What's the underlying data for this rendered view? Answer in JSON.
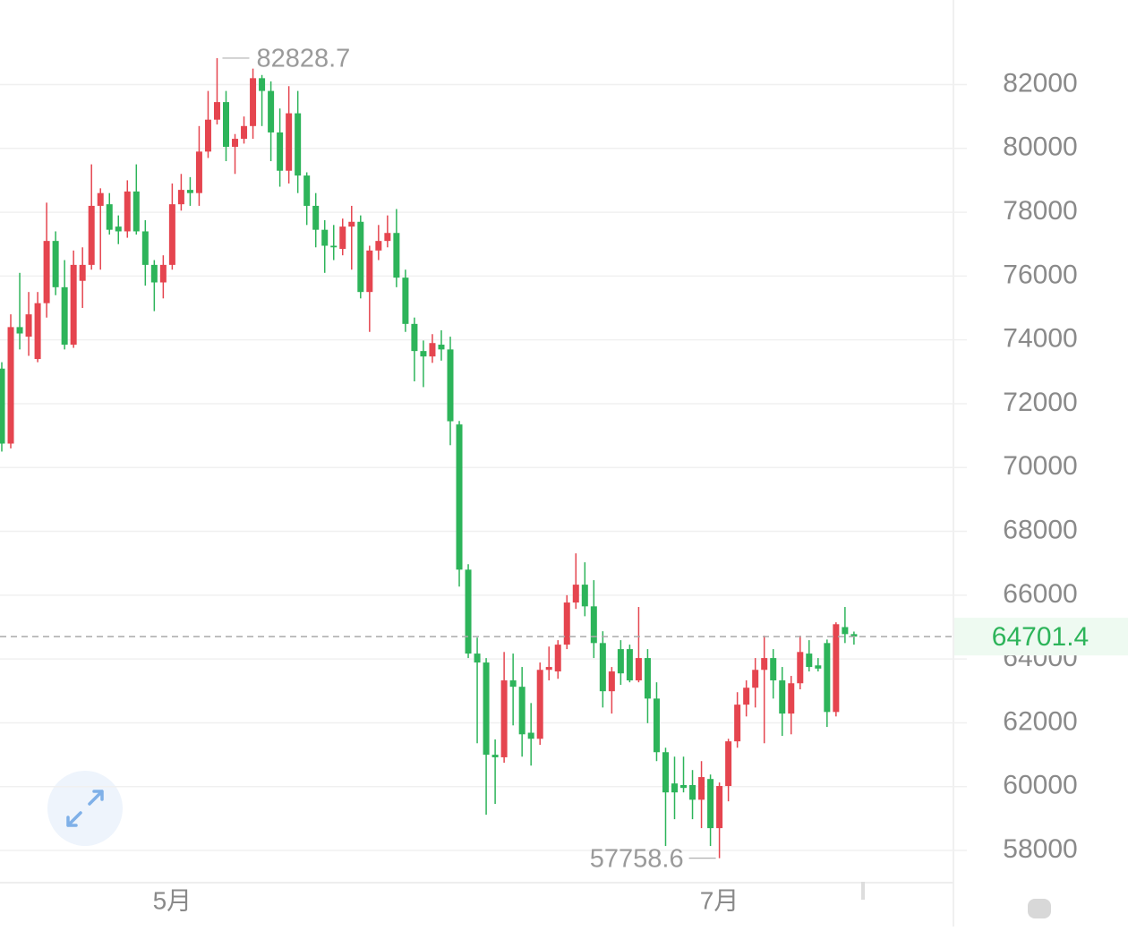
{
  "chart_data": {
    "type": "candlestick",
    "categories": [
      null,
      null,
      null,
      null,
      null,
      null,
      null,
      null,
      null,
      null,
      null,
      null,
      null,
      null,
      null,
      null,
      null,
      null,
      null,
      "5月",
      null,
      null,
      null,
      null,
      null,
      null,
      null,
      null,
      null,
      null,
      null,
      null,
      null,
      null,
      null,
      null,
      null,
      null,
      null,
      null,
      null,
      null,
      null,
      null,
      null,
      null,
      null,
      null,
      null,
      null,
      null,
      null,
      null,
      null,
      null,
      null,
      null,
      null,
      null,
      null,
      null,
      null,
      null,
      null,
      null,
      null,
      null,
      null,
      null,
      null,
      null,
      null,
      null,
      null,
      null,
      null,
      null,
      null,
      null,
      null,
      "7月",
      null,
      null,
      null,
      null,
      null,
      null,
      null,
      null,
      null,
      null,
      null,
      null,
      null,
      null,
      null
    ],
    "open": [
      73100,
      70750,
      74400,
      74100,
      73400,
      75150,
      77100,
      75650,
      73850,
      75850,
      76350,
      78200,
      78250,
      77550,
      77400,
      78650,
      77400,
      76350,
      75800,
      76350,
      78250,
      78700,
      78600,
      79900,
      80900,
      81450,
      80050,
      80300,
      80700,
      82200,
      81800,
      80500,
      79300,
      81100,
      79150,
      78200,
      77450,
      76950,
      76850,
      77550,
      77700,
      75500,
      76800,
      77100,
      77350,
      75950,
      74500,
      73650,
      73480,
      73850,
      73700,
      71350,
      66800,
      64170,
      63890,
      61000,
      60920,
      63330,
      63130,
      61690,
      61500,
      63660,
      63610,
      64450,
      65770,
      66330,
      65650,
      64500,
      62990,
      64310,
      64310,
      63330,
      64030,
      62760,
      61080,
      60100,
      60050,
      60050,
      59590,
      60240,
      58700,
      60020,
      61420,
      62570,
      63100,
      63660,
      64030,
      63330,
      62290,
      63240,
      64170,
      63800,
      64500,
      62340,
      65000,
      64780
    ],
    "high": [
      73300,
      74800,
      76100,
      75500,
      75500,
      78300,
      77400,
      76500,
      76800,
      76900,
      79500,
      78750,
      78600,
      77900,
      79000,
      79500,
      77750,
      76500,
      76650,
      78900,
      79200,
      79100,
      80700,
      81800,
      82828.7,
      81800,
      80450,
      81000,
      82500,
      82300,
      82100,
      81250,
      81950,
      81800,
      79250,
      78600,
      77750,
      77600,
      77800,
      78200,
      77900,
      76950,
      77600,
      77900,
      78100,
      76200,
      74700,
      73980,
      74180,
      74300,
      74100,
      71460,
      66970,
      64670,
      64030,
      61480,
      64220,
      64170,
      63750,
      62620,
      63890,
      64390,
      64590,
      66000,
      67310,
      67030,
      66470,
      64870,
      63750,
      64590,
      64450,
      65630,
      64310,
      63270,
      61220,
      60940,
      60940,
      60520,
      60800,
      60380,
      60130,
      61500,
      62960,
      63330,
      64030,
      64730,
      64310,
      63750,
      63470,
      64730,
      64590,
      64030,
      64610,
      65150,
      65630,
      64860
    ],
    "low": [
      70500,
      70600,
      73700,
      73500,
      73300,
      74700,
      75400,
      73700,
      73750,
      75000,
      76200,
      76200,
      77300,
      77000,
      77200,
      77300,
      75700,
      74900,
      75300,
      76200,
      78050,
      78200,
      78200,
      79700,
      80750,
      79600,
      79200,
      80150,
      80300,
      80700,
      79600,
      78800,
      78900,
      78600,
      77600,
      76900,
      76100,
      76500,
      76650,
      76200,
      75300,
      74250,
      76500,
      76900,
      75650,
      74250,
      72700,
      72520,
      73280,
      73350,
      70700,
      66270,
      64030,
      61360,
      59120,
      59460,
      60750,
      61920,
      60940,
      60660,
      61310,
      63330,
      63380,
      64310,
      65570,
      65340,
      64030,
      62480,
      62290,
      63190,
      63270,
      63270,
      61990,
      60800,
      58140,
      58980,
      59820,
      58980,
      58700,
      58140,
      57758.6,
      59540,
      61220,
      62200,
      62480,
      61360,
      62760,
      61590,
      61640,
      63050,
      63610,
      63610,
      61870,
      62200,
      64500,
      64450
    ],
    "close": [
      70750,
      74400,
      74200,
      74800,
      75150,
      77100,
      75650,
      73850,
      76350,
      76350,
      78200,
      78600,
      77450,
      77400,
      78650,
      77400,
      76350,
      75800,
      76350,
      78250,
      78700,
      78600,
      79900,
      80900,
      81450,
      80050,
      80300,
      80700,
      82200,
      81800,
      80500,
      79300,
      81100,
      79150,
      78200,
      77450,
      76950,
      76900,
      77550,
      77700,
      75500,
      76800,
      77100,
      77350,
      75950,
      74500,
      73650,
      73480,
      73900,
      73700,
      71450,
      66800,
      64170,
      63890,
      61000,
      60920,
      63330,
      63130,
      61640,
      61500,
      63660,
      63750,
      64450,
      65770,
      66330,
      65650,
      64500,
      62990,
      63610,
      63550,
      63330,
      64030,
      62760,
      61080,
      59820,
      59820,
      59960,
      59590,
      60300,
      58700,
      60020,
      61420,
      62570,
      63100,
      63660,
      64030,
      63330,
      62290,
      63240,
      64220,
      63750,
      63700,
      62340,
      65090,
      64780,
      64701.4
    ],
    "up_color": "#e5454f",
    "down_color": "#2db45a",
    "ylim": [
      57000,
      84650
    ],
    "yticks": [
      58000,
      60000,
      62000,
      64000,
      66000,
      68000,
      70000,
      72000,
      74000,
      76000,
      78000,
      80000,
      82000
    ],
    "grid": true
  }
}
